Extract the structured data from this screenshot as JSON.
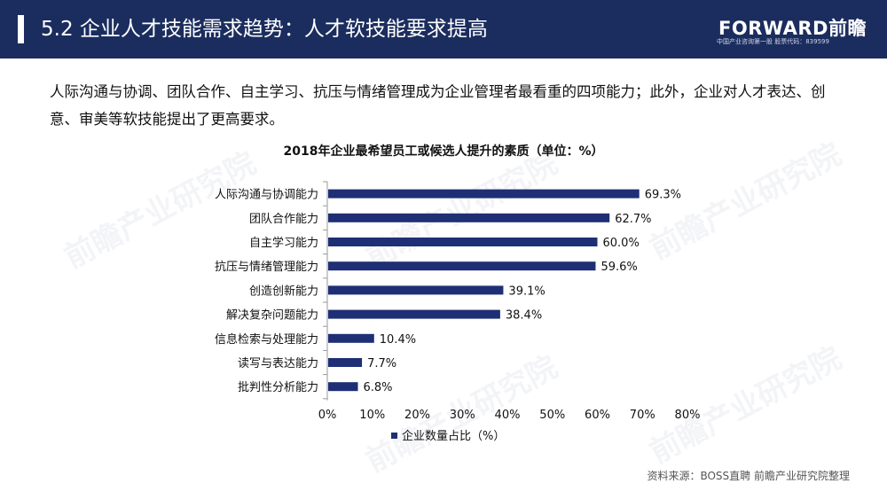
{
  "header": {
    "title": "5.2 企业人才技能需求趋势：人才软技能要求提高",
    "logo_main": "FORWARD前瞻",
    "logo_sub": "中国产业咨询第一股 股票代码：839599"
  },
  "intro": "人际沟通与协调、团队合作、自主学习、抗压与情绪管理成为企业管理者最看重的四项能力；此外，企业对人才表达、创意、审美等软技能提出了更高要求。",
  "source": "资料来源：BOSS直聘 前瞻产业研究院整理",
  "watermark": "前瞻产业研究院",
  "colors": {
    "header": "#1b2d5e",
    "bar": "#1f2f75"
  },
  "chart_data": {
    "type": "bar",
    "orientation": "horizontal",
    "title": "2018年企业最希望员工或候选人提升的素质（单位：%）",
    "categories": [
      "人际沟通与协调能力",
      "团队合作能力",
      "自主学习能力",
      "抗压与情绪管理能力",
      "创造创新能力",
      "解决复杂问题能力",
      "信息检索与处理能力",
      "读写与表达能力",
      "批判性分析能力"
    ],
    "series": [
      {
        "name": "企业数量占比（%）",
        "values": [
          69.3,
          62.7,
          60.0,
          59.6,
          39.1,
          38.4,
          10.4,
          7.7,
          6.8
        ]
      }
    ],
    "data_labels": [
      "69.3%",
      "62.7%",
      "60.0%",
      "59.6%",
      "39.1%",
      "38.4%",
      "10.4%",
      "7.7%",
      "6.8%"
    ],
    "xlim": [
      0,
      80
    ],
    "xticks": [
      "0%",
      "10%",
      "20%",
      "30%",
      "40%",
      "50%",
      "60%",
      "70%",
      "80%"
    ],
    "grid": false,
    "legend_position": "bottom"
  }
}
